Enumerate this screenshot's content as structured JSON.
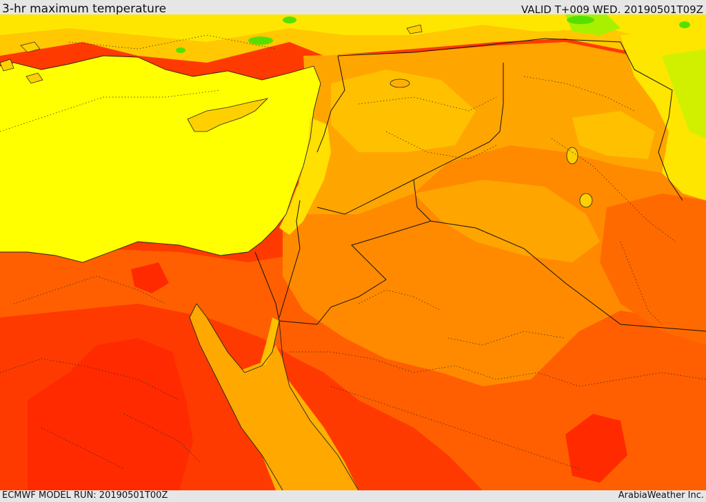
{
  "header": {
    "title": "3-hr maximum temperature",
    "valid": "VALID T+009 WED. 20190501T09Z"
  },
  "footer": {
    "model_run": "ECMWF MODEL RUN: 20190501T00Z",
    "credit": "ArabiaWeather Inc."
  },
  "map": {
    "region": "Eastern Mediterranean / Middle East",
    "palette": {
      "cool_green": "#55e000",
      "green_yellow": "#c8f000",
      "yellow": "#ffff00",
      "yellow_orange": "#ffdc00",
      "light_orange": "#ffbe00",
      "orange": "#ffa500",
      "dark_orange": "#ff8200",
      "red_orange": "#ff5500",
      "red": "#ff2a00"
    }
  }
}
